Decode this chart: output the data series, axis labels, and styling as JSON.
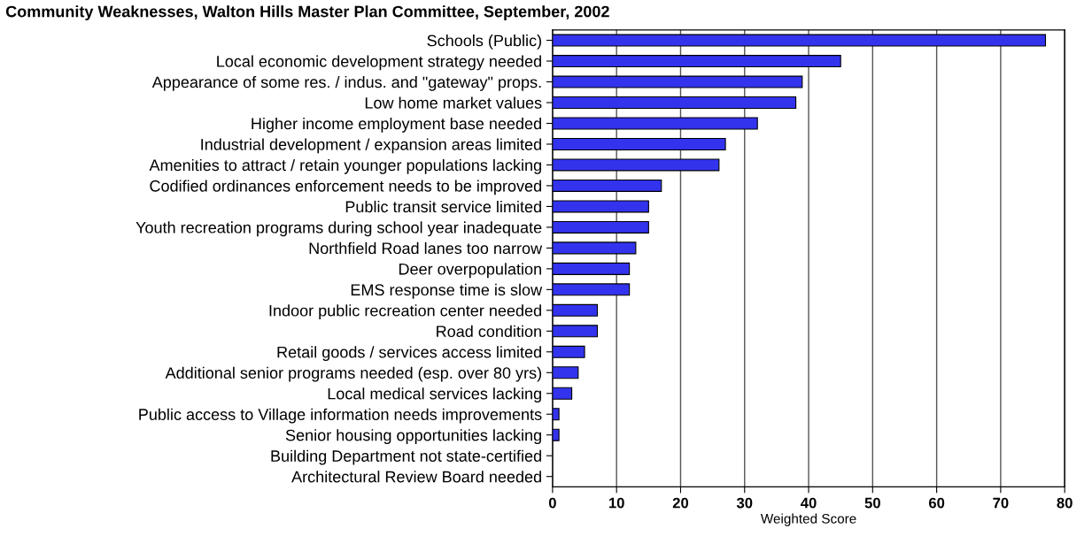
{
  "chart_data": {
    "type": "bar",
    "orientation": "horizontal",
    "title": "Community Weaknesses, Walton Hills Master Plan Committee, September, 2002",
    "xlabel": "Weighted Score",
    "categories": [
      "Schools (Public)",
      "Local economic development strategy needed",
      "Appearance of some res. / indus. and \"gateway\" props.",
      "Low home market values",
      "Higher income employment base needed",
      "Industrial development / expansion areas limited",
      "Amenities to attract / retain younger populations lacking",
      "Codified ordinances enforcement needs to be improved",
      "Public transit service limited",
      "Youth recreation programs during school year inadequate",
      "Northfield Road lanes too narrow",
      "Deer overpopulation",
      "EMS response time is slow",
      "Indoor public recreation center needed",
      "Road condition",
      "Retail goods / services access limited",
      "Additional senior programs needed (esp. over 80 yrs)",
      "Local medical services lacking",
      "Public access to Village information needs improvements",
      "Senior housing opportunities lacking",
      "Building Department not state-certified",
      "Architectural Review Board needed"
    ],
    "values": [
      77,
      45,
      39,
      38,
      32,
      27,
      26,
      17,
      15,
      15,
      13,
      12,
      12,
      7,
      7,
      5,
      4,
      3,
      1,
      1,
      0,
      0
    ],
    "color": "#3333ee",
    "xlim": [
      0,
      80
    ],
    "xticks": [
      0,
      10,
      20,
      30,
      40,
      50,
      60,
      70,
      80
    ],
    "grid": "x"
  }
}
